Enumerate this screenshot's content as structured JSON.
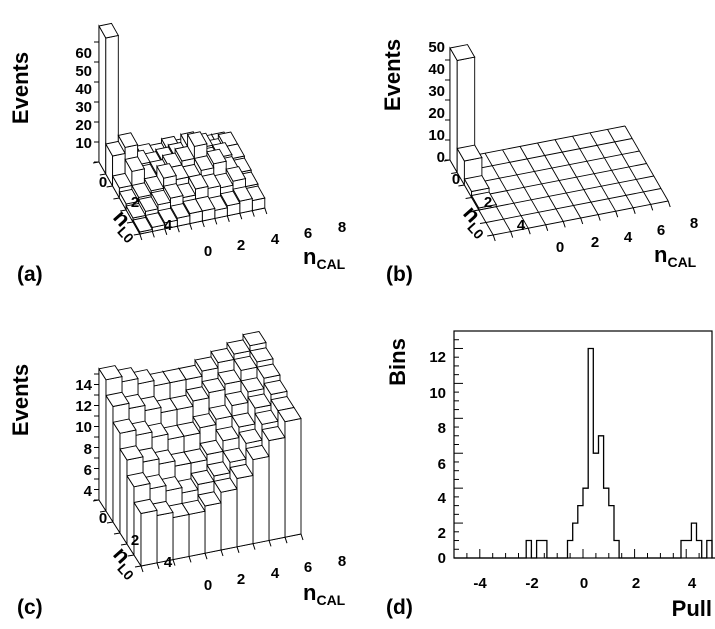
{
  "figure": {
    "panels": [
      {
        "label": "(a)",
        "ylabel": "Events",
        "yticks": [
          "60",
          "50",
          "40",
          "30",
          "20",
          "10"
        ],
        "lticks": [
          "0",
          "2",
          "4"
        ],
        "cticks": [
          "0",
          "2",
          "4",
          "6",
          "8"
        ]
      },
      {
        "label": "(b)",
        "ylabel": "Events",
        "yticks": [
          "50",
          "40",
          "30",
          "20",
          "10",
          "0"
        ],
        "lticks": [
          "0",
          "2",
          "4"
        ],
        "cticks": [
          "0",
          "2",
          "4",
          "6",
          "8"
        ]
      },
      {
        "label": "(c)",
        "ylabel": "Events",
        "yticks": [
          "14",
          "12",
          "10",
          "8",
          "6",
          "4"
        ],
        "lticks": [
          "0",
          "2",
          "4"
        ],
        "cticks": [
          "0",
          "2",
          "4",
          "6",
          "8"
        ]
      },
      {
        "label": "(d)",
        "ylabel": "Bins",
        "xlabel": "Pull",
        "yticks": [
          "12",
          "10",
          "8",
          "6",
          "4",
          "2",
          "0"
        ],
        "xticks": [
          "-4",
          "-2",
          "0",
          "2",
          "4"
        ]
      }
    ],
    "axis_text": {
      "n": "n",
      "l0": "L0",
      "cal": "CAL"
    }
  },
  "chart_data": [
    {
      "type": "bar",
      "panel": "a",
      "ylabel": "Events",
      "xlabel": "nCAL",
      "zlabel": "nL0",
      "nCAL_bins": [
        0,
        1,
        2,
        3,
        4,
        5,
        6,
        7,
        8,
        9
      ],
      "nL0_bins": [
        0,
        1,
        2,
        3,
        4,
        5
      ],
      "values": [
        [
          68,
          4,
          3,
          4,
          3,
          5,
          3,
          2,
          2,
          2
        ],
        [
          15,
          18,
          8,
          6,
          7,
          8,
          12,
          10,
          6,
          8
        ],
        [
          5,
          12,
          7,
          8,
          10,
          12,
          18,
          9,
          10,
          8
        ],
        [
          3,
          5,
          7,
          12,
          10,
          9,
          12,
          14,
          9,
          7
        ],
        [
          2,
          4,
          6,
          8,
          7,
          10,
          9,
          8,
          10,
          6
        ],
        [
          1,
          2,
          3,
          4,
          5,
          5,
          4,
          5,
          6,
          5
        ]
      ]
    },
    {
      "type": "bar",
      "panel": "b",
      "ylabel": "Events",
      "xlabel": "nCAL",
      "zlabel": "nL0",
      "nCAL_bins": [
        0,
        1,
        2,
        3,
        4,
        5,
        6,
        7,
        8,
        9
      ],
      "nL0_bins": [
        0,
        1,
        2,
        3,
        4,
        5
      ],
      "values": [
        [
          56,
          0,
          0,
          0,
          0,
          0,
          0,
          0,
          0,
          0
        ],
        [
          12,
          0,
          0,
          0,
          0,
          0,
          0,
          0,
          0,
          0
        ],
        [
          3,
          0,
          0,
          0,
          0,
          0,
          0,
          0,
          0,
          0
        ],
        [
          1,
          0,
          0,
          0,
          0,
          0,
          0,
          0,
          0,
          0
        ],
        [
          0,
          0,
          0,
          0,
          0,
          0,
          0,
          0,
          0,
          0
        ],
        [
          0,
          0,
          0,
          0,
          0,
          0,
          0,
          0,
          0,
          0
        ]
      ]
    },
    {
      "type": "bar",
      "panel": "c",
      "ylabel": "Events",
      "xlabel": "nCAL",
      "zlabel": "nL0",
      "nCAL_bins": [
        0,
        1,
        2,
        3,
        4,
        5,
        6,
        7,
        8,
        9
      ],
      "nL0_bins": [
        0,
        1,
        2,
        3,
        4,
        5
      ],
      "values": [
        [
          12.5,
          12,
          11.5,
          11,
          11,
          11,
          11.5,
          12,
          12.5,
          13
        ],
        [
          11,
          10.5,
          10,
          9.5,
          9.5,
          10,
          10.5,
          11,
          12,
          12.5
        ],
        [
          9.5,
          9,
          8.5,
          8,
          8,
          8.5,
          9,
          10,
          11,
          12
        ],
        [
          8,
          7.5,
          7,
          6.5,
          6.5,
          7,
          8,
          9,
          10.5,
          11.5
        ],
        [
          6.5,
          6,
          5.5,
          5,
          5.5,
          6,
          7,
          8.5,
          10,
          11
        ],
        [
          5,
          4.5,
          4,
          4,
          4.5,
          5.5,
          6.5,
          8,
          9.5,
          11
        ]
      ]
    },
    {
      "type": "bar",
      "panel": "d",
      "xlabel": "Pull",
      "ylabel": "Bins",
      "xlim": [
        -5,
        5
      ],
      "ylim": [
        0,
        13
      ],
      "bin_width": 0.2,
      "bin_edges_start": -5,
      "values": [
        0,
        0,
        0,
        0,
        0,
        0,
        0,
        0,
        0,
        0,
        0,
        0,
        0,
        0,
        1,
        0,
        1,
        1,
        0,
        0,
        0,
        0,
        1,
        2,
        3,
        4,
        12,
        6,
        7,
        4,
        3,
        1,
        0,
        0,
        0,
        0,
        0,
        0,
        0,
        0,
        0,
        0,
        0,
        0,
        1,
        1,
        2,
        1,
        0,
        1,
        0,
        0,
        0,
        0,
        0,
        0,
        0,
        0,
        0,
        0
      ]
    }
  ]
}
